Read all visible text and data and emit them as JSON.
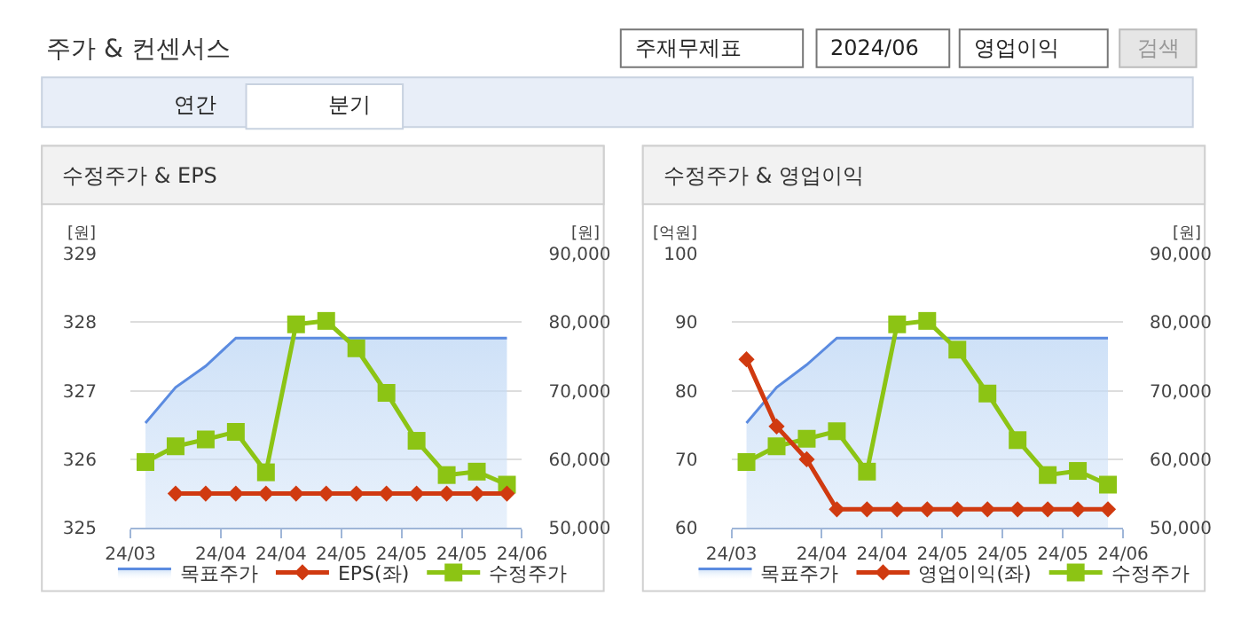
{
  "chart_data": [
    {
      "type": "other",
      "title": "주가 & 컨센서스",
      "annotations": [
        "주재무제표",
        "2024/06",
        "영업이익",
        "검색",
        "연간",
        "분기"
      ]
    },
    {
      "type": "line",
      "title": "수정주가 & EPS",
      "ylabel": "[원]",
      "y2label": "[원]",
      "x": [
        "2024-03-17T12:00",
        "2024-03-24T12:00",
        "2024-03-31T12:00",
        "2024-04-07T12:00",
        "2024-04-14T12:00",
        "2024-04-21T12:00",
        "2024-04-28T12:00",
        "2024-05-05T12:00",
        "2024-05-12T12:00",
        "2024-05-19T12:00",
        "2024-05-26T12:00",
        "2024-06-02T12:00",
        "2024-06-09T12:00"
      ],
      "xlim": [
        "2024-03-14",
        "2024-06-13"
      ],
      "xticks": [
        {
          "value": "2024-03-14",
          "label": "24/03"
        },
        {
          "value": "2024-04-04",
          "label": "24/04"
        },
        {
          "value": "2024-04-18",
          "label": "24/04"
        },
        {
          "value": "2024-05-02",
          "label": "24/05"
        },
        {
          "value": "2024-05-16",
          "label": "24/05"
        },
        {
          "value": "2024-05-30",
          "label": "24/05"
        },
        {
          "value": "2024-06-13",
          "label": "24/06"
        }
      ],
      "ylim": [
        325,
        329
      ],
      "yticks": [
        325,
        326,
        327,
        328,
        329
      ],
      "y2lim": [
        50000,
        90000
      ],
      "y2ticks": [
        {
          "value": 50000,
          "label": "50,000"
        },
        {
          "value": 60000,
          "label": "60,000"
        },
        {
          "value": 70000,
          "label": "70,000"
        },
        {
          "value": 80000,
          "label": "80,000"
        },
        {
          "value": 90000,
          "label": "90,000"
        }
      ],
      "grid": "y",
      "legend": "bottom",
      "series": [
        {
          "name": "목표주가",
          "type": "area",
          "axis": "y2",
          "color": "#5b8be0",
          "marker": "none",
          "values": [
            65300,
            70500,
            73600,
            77700,
            77700,
            77700,
            77700,
            77700,
            77700,
            77700,
            77700,
            77700,
            77700
          ]
        },
        {
          "name": "EPS(좌)",
          "type": "line",
          "color": "#d03a10",
          "marker": "diamond",
          "values": [
            null,
            325.5,
            325.5,
            325.5,
            325.5,
            325.5,
            325.5,
            325.5,
            325.5,
            325.5,
            325.5,
            325.5,
            325.5
          ]
        },
        {
          "name": "수정주가",
          "type": "line",
          "axis": "y2",
          "color": "#8cc414",
          "marker": "square",
          "values": [
            59600,
            61900,
            62900,
            64000,
            58100,
            79700,
            80200,
            76200,
            69700,
            62700,
            57700,
            58200,
            56300
          ]
        }
      ]
    },
    {
      "type": "line",
      "title": "수정주가 & 영업이익",
      "ylabel": "[억원]",
      "y2label": "[원]",
      "x": [
        "2024-03-17T12:00",
        "2024-03-24T12:00",
        "2024-03-31T12:00",
        "2024-04-07T12:00",
        "2024-04-14T12:00",
        "2024-04-21T12:00",
        "2024-04-28T12:00",
        "2024-05-05T12:00",
        "2024-05-12T12:00",
        "2024-05-19T12:00",
        "2024-05-26T12:00",
        "2024-06-02T12:00",
        "2024-06-09T12:00"
      ],
      "xlim": [
        "2024-03-14",
        "2024-06-13"
      ],
      "xticks": [
        {
          "value": "2024-03-14",
          "label": "24/03"
        },
        {
          "value": "2024-04-04",
          "label": "24/04"
        },
        {
          "value": "2024-04-18",
          "label": "24/04"
        },
        {
          "value": "2024-05-02",
          "label": "24/05"
        },
        {
          "value": "2024-05-16",
          "label": "24/05"
        },
        {
          "value": "2024-05-30",
          "label": "24/05"
        },
        {
          "value": "2024-06-13",
          "label": "24/06"
        }
      ],
      "ylim": [
        60,
        100
      ],
      "yticks": [
        60,
        70,
        80,
        90,
        100
      ],
      "y2lim": [
        50000,
        90000
      ],
      "y2ticks": [
        {
          "value": 50000,
          "label": "50,000"
        },
        {
          "value": 60000,
          "label": "60,000"
        },
        {
          "value": 70000,
          "label": "70,000"
        },
        {
          "value": 80000,
          "label": "80,000"
        },
        {
          "value": 90000,
          "label": "90,000"
        }
      ],
      "grid": "y",
      "legend": "bottom",
      "series": [
        {
          "name": "목표주가",
          "type": "area",
          "axis": "y2",
          "color": "#5b8be0",
          "marker": "none",
          "values": [
            65300,
            70500,
            73800,
            77700,
            77700,
            77700,
            77700,
            77700,
            77700,
            77700,
            77700,
            77700,
            77700
          ]
        },
        {
          "name": "영업이익(좌)",
          "type": "line",
          "color": "#d03a10",
          "marker": "diamond",
          "values": [
            84.6,
            74.8,
            70,
            62.7,
            62.7,
            62.7,
            62.7,
            62.7,
            62.7,
            62.7,
            62.7,
            62.7,
            62.7
          ]
        },
        {
          "name": "수정주가",
          "type": "line",
          "axis": "y2",
          "color": "#8cc414",
          "marker": "square",
          "values": [
            59600,
            61900,
            63000,
            64100,
            58200,
            79700,
            80200,
            76000,
            69600,
            62800,
            57700,
            58300,
            56300
          ]
        }
      ]
    }
  ]
}
